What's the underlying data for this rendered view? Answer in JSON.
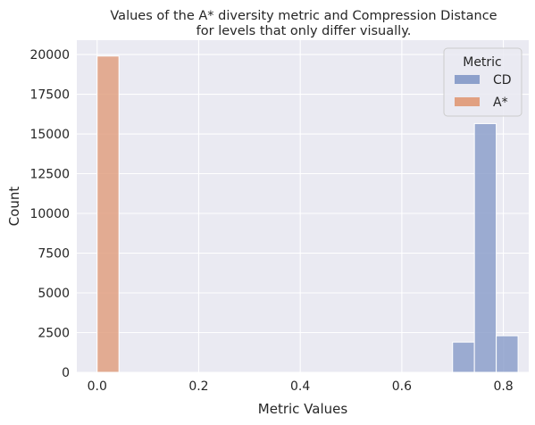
{
  "chart_data": {
    "type": "bar",
    "title": "Values of the A* diversity metric and Compression Distance\nfor levels that only differ visually.",
    "xlabel": "Metric Values",
    "ylabel": "Count",
    "xlim": [
      -0.04,
      0.85
    ],
    "ylim": [
      0,
      20900
    ],
    "xticks": [
      0.0,
      0.2,
      0.4,
      0.6,
      0.8
    ],
    "xtick_labels": [
      "0.0",
      "0.2",
      "0.4",
      "0.6",
      "0.8"
    ],
    "yticks": [
      0,
      2500,
      5000,
      7500,
      10000,
      12500,
      15000,
      17500,
      20000
    ],
    "ytick_labels": [
      "0",
      "2500",
      "5000",
      "7500",
      "10000",
      "12500",
      "15000",
      "17500",
      "20000"
    ],
    "grid": true,
    "legend": {
      "title": "Metric",
      "placement": "top-right"
    },
    "series": [
      {
        "name": "CD",
        "color": "#8da0cb",
        "bins": [
          {
            "x0": 0.7,
            "x1": 0.743,
            "count": 1900
          },
          {
            "x0": 0.743,
            "x1": 0.786,
            "count": 15650
          },
          {
            "x0": 0.786,
            "x1": 0.829,
            "count": 2300
          }
        ]
      },
      {
        "name": "A*",
        "color": "#e1a081",
        "bins": [
          {
            "x0": 0.0,
            "x1": 0.043,
            "count": 19900
          }
        ]
      }
    ]
  }
}
